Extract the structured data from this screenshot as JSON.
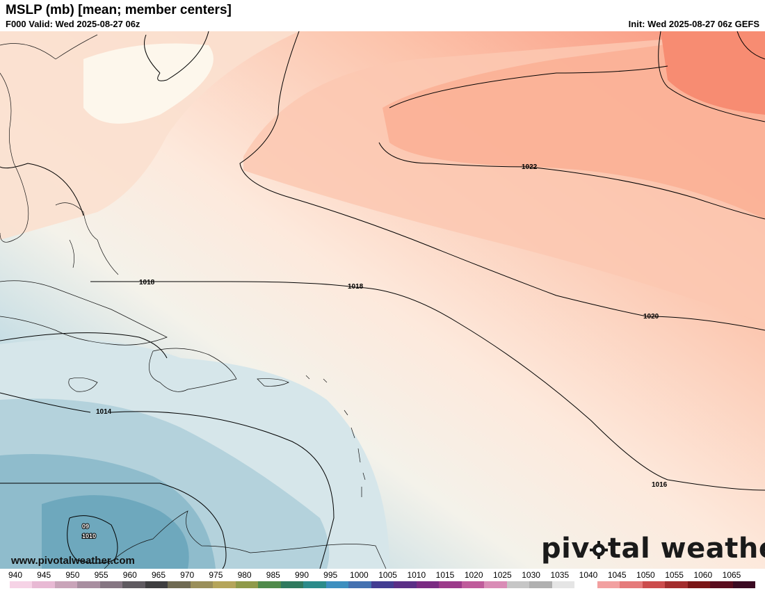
{
  "header": {
    "title": "MSLP (mb) [mean; member centers]",
    "valid": "F000 Valid: Wed 2025-08-27 06z",
    "init": "Init: Wed 2025-08-27 06z GEFS"
  },
  "map": {
    "contours": [
      {
        "label": "1022"
      },
      {
        "label": "1020"
      },
      {
        "label": "1018"
      },
      {
        "label": "1018"
      },
      {
        "label": "1016"
      },
      {
        "label": "1014"
      }
    ],
    "low_center": {
      "line1": "09",
      "line2": "1010"
    }
  },
  "watermark": "www.pivotalweather.com",
  "brand": {
    "before": "piv",
    "after": "tal weather"
  },
  "colorbar": {
    "labels": [
      "940",
      "945",
      "950",
      "955",
      "960",
      "965",
      "970",
      "975",
      "980",
      "985",
      "990",
      "995",
      "1000",
      "1005",
      "1010",
      "1015",
      "1020",
      "1025",
      "1030",
      "1035",
      "1040",
      "1045",
      "1050",
      "1055",
      "1060",
      "1065"
    ],
    "colors": [
      "#f6d3e6",
      "#e8b9d4",
      "#c9a4b9",
      "#a88ea0",
      "#857682",
      "#5f5a60",
      "#3e3d3f",
      "#6f6a52",
      "#9a8f5a",
      "#b5a55a",
      "#8f9a49",
      "#4f8a4a",
      "#2f7a5e",
      "#2b8b8a",
      "#3d8fbf",
      "#4471b0",
      "#433d92",
      "#5b2f86",
      "#7a2b82",
      "#9c3a8a",
      "#bf5b9b",
      "#d98cb6",
      "#c6c6c6",
      "#b0b0b0",
      "#e5e5e5",
      "#ffffff"
    ],
    "tail_colors": [
      "#f2a0a0",
      "#e57a7a",
      "#cc4c4c",
      "#a32d2d",
      "#7a1616",
      "#5a0c1e",
      "#3a0a22"
    ]
  }
}
